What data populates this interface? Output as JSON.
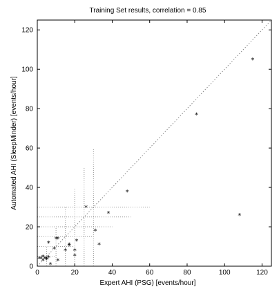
{
  "chart_data": {
    "type": "scatter",
    "title": "Training Set results, correlation = 0.85",
    "xlabel": "Expert AHI (PSG) [events/hour]",
    "ylabel": "Automated AHI (SleepMinder) [events/hour]",
    "xlim": [
      0,
      125
    ],
    "ylim": [
      0,
      125
    ],
    "xticks": [
      0,
      20,
      40,
      60,
      80,
      100,
      120
    ],
    "yticks": [
      0,
      20,
      40,
      60,
      80,
      100,
      120
    ],
    "marker": "*",
    "grid": false,
    "legend": "none",
    "reference_line": {
      "type": "identity",
      "style": "dotted",
      "from": [
        0,
        0
      ],
      "to": [
        125,
        125
      ]
    },
    "threshold_lines": {
      "style": "dotted",
      "thresholds": [
        5,
        10,
        15,
        20,
        25,
        30
      ]
    },
    "points": [
      [
        1,
        4
      ],
      [
        2,
        4
      ],
      [
        3,
        5
      ],
      [
        3,
        3
      ],
      [
        4,
        4
      ],
      [
        5,
        4
      ],
      [
        5,
        3.5
      ],
      [
        6,
        4.5
      ],
      [
        6,
        12
      ],
      [
        7,
        1
      ],
      [
        9,
        9
      ],
      [
        10,
        14
      ],
      [
        11,
        3
      ],
      [
        11,
        14
      ],
      [
        15,
        8
      ],
      [
        17,
        11
      ],
      [
        17,
        10.5
      ],
      [
        20,
        8
      ],
      [
        20,
        5.5
      ],
      [
        21,
        13
      ],
      [
        26,
        30
      ],
      [
        31,
        18
      ],
      [
        33,
        11
      ],
      [
        38,
        27
      ],
      [
        48,
        38
      ],
      [
        85,
        77
      ],
      [
        108,
        26
      ],
      [
        115,
        105
      ]
    ]
  }
}
